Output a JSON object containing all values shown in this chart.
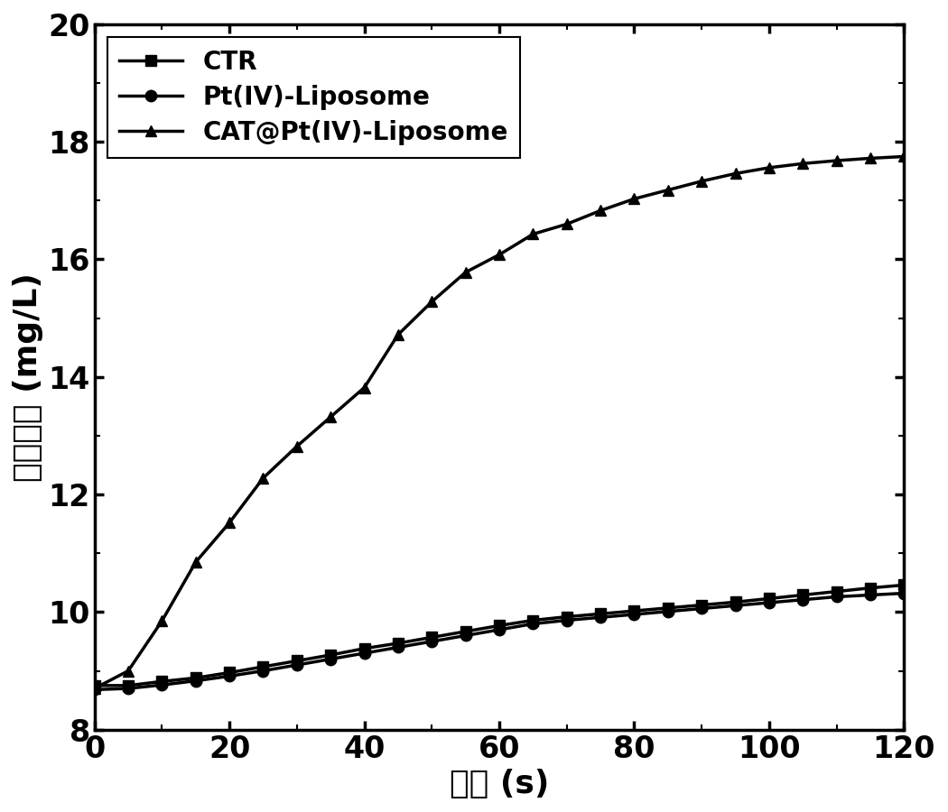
{
  "title": "",
  "xlabel": "时间 (s)",
  "ylabel": "氧气浓度 (mg/L)",
  "xlim": [
    0,
    120
  ],
  "ylim": [
    8,
    20
  ],
  "xticks": [
    0,
    20,
    40,
    60,
    80,
    100,
    120
  ],
  "yticks": [
    8,
    10,
    12,
    14,
    16,
    18,
    20
  ],
  "series": [
    {
      "label": "CTR",
      "marker": "s",
      "x": [
        0,
        5,
        10,
        15,
        20,
        25,
        30,
        35,
        40,
        45,
        50,
        55,
        60,
        65,
        70,
        75,
        80,
        85,
        90,
        95,
        100,
        105,
        110,
        115,
        120
      ],
      "y": [
        8.75,
        8.75,
        8.82,
        8.88,
        8.97,
        9.07,
        9.17,
        9.27,
        9.38,
        9.47,
        9.57,
        9.67,
        9.77,
        9.86,
        9.92,
        9.97,
        10.02,
        10.07,
        10.12,
        10.17,
        10.23,
        10.29,
        10.35,
        10.41,
        10.46
      ]
    },
    {
      "label": "Pt(IV)-Liposome",
      "marker": "o",
      "x": [
        0,
        5,
        10,
        15,
        20,
        25,
        30,
        35,
        40,
        45,
        50,
        55,
        60,
        65,
        70,
        75,
        80,
        85,
        90,
        95,
        100,
        105,
        110,
        115,
        120
      ],
      "y": [
        8.68,
        8.7,
        8.76,
        8.83,
        8.91,
        9.0,
        9.1,
        9.2,
        9.3,
        9.4,
        9.5,
        9.6,
        9.7,
        9.8,
        9.86,
        9.91,
        9.96,
        10.01,
        10.06,
        10.11,
        10.16,
        10.21,
        10.26,
        10.29,
        10.32
      ]
    },
    {
      "label": "CAT@Pt(IV)-Liposome",
      "marker": "^",
      "x": [
        0,
        5,
        10,
        15,
        20,
        25,
        30,
        35,
        40,
        45,
        50,
        55,
        60,
        65,
        70,
        75,
        80,
        85,
        90,
        95,
        100,
        105,
        110,
        115,
        120
      ],
      "y": [
        8.7,
        9.0,
        9.85,
        10.85,
        11.52,
        12.28,
        12.82,
        13.32,
        13.82,
        14.72,
        15.28,
        15.78,
        16.08,
        16.43,
        16.6,
        16.83,
        17.03,
        17.18,
        17.33,
        17.46,
        17.56,
        17.63,
        17.68,
        17.72,
        17.75
      ]
    }
  ],
  "line_color": "#000000",
  "line_width": 2.5,
  "marker_size": 9,
  "legend_fontsize": 20,
  "axis_label_fontsize": 26,
  "tick_fontsize": 24,
  "background_color": "#ffffff"
}
